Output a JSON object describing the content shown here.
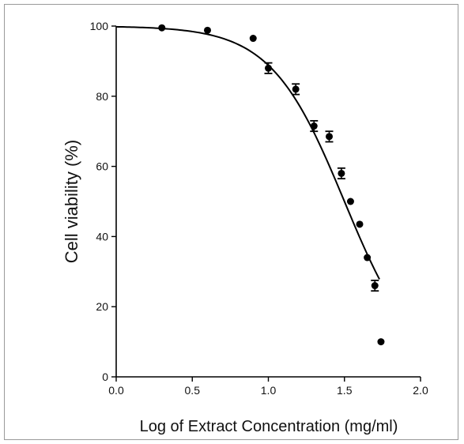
{
  "chart_data": {
    "type": "scatter",
    "xlabel": "Log of Extract Concentration (mg/ml)",
    "ylabel": "Cell viability (%)",
    "xlim": [
      0.0,
      2.0
    ],
    "ylim": [
      0,
      100
    ],
    "x_ticks": [
      "0.0",
      "0.5",
      "1.0",
      "1.5",
      "2.0"
    ],
    "y_ticks": [
      "0",
      "20",
      "40",
      "60",
      "80",
      "100"
    ],
    "grid": false,
    "points": [
      {
        "x": 0.3,
        "y": 99.5,
        "err": 0.5
      },
      {
        "x": 0.6,
        "y": 98.8,
        "err": 0.5
      },
      {
        "x": 0.9,
        "y": 96.5,
        "err": 0.5
      },
      {
        "x": 1.0,
        "y": 88.0,
        "err": 1.5
      },
      {
        "x": 1.18,
        "y": 82.0,
        "err": 1.5
      },
      {
        "x": 1.3,
        "y": 71.5,
        "err": 1.5
      },
      {
        "x": 1.4,
        "y": 68.5,
        "err": 1.5
      },
      {
        "x": 1.48,
        "y": 58.0,
        "err": 1.5
      },
      {
        "x": 1.54,
        "y": 50.0,
        "err": 0.5
      },
      {
        "x": 1.6,
        "y": 43.5,
        "err": 0.5
      },
      {
        "x": 1.65,
        "y": 34.0,
        "err": 0.5
      },
      {
        "x": 1.7,
        "y": 26.0,
        "err": 1.5
      },
      {
        "x": 1.74,
        "y": 10.0,
        "err": 0.5
      }
    ],
    "fit_curve": {
      "model": "sigmoidal dose-response",
      "top": 100,
      "bottom": 0,
      "log_ic50": 1.5,
      "hill_slope": -1.8,
      "x_range": [
        0.0,
        1.73
      ]
    }
  }
}
